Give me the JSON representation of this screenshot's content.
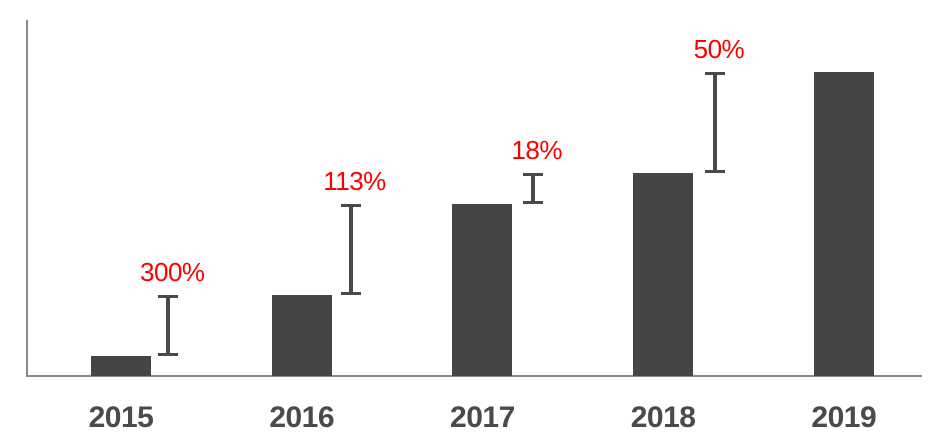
{
  "chart_data": {
    "type": "bar",
    "title": "",
    "xlabel": "",
    "ylabel": "",
    "categories": [
      "2015",
      "2016",
      "2017",
      "2018",
      "2019"
    ],
    "values": [
      6.6,
      26.5,
      56.5,
      66.7,
      100
    ],
    "value_scale": "relative bar height, tallest bar (2019) = 100; chart shows no y-axis tick labels",
    "growth_labels": [
      {
        "from": "2015",
        "to": "2016",
        "label": "300%"
      },
      {
        "from": "2016",
        "to": "2017",
        "label": "113%"
      },
      {
        "from": "2017",
        "to": "2018",
        "label": "18%"
      },
      {
        "from": "2018",
        "to": "2019",
        "label": "50%"
      }
    ],
    "grid": false,
    "legend": "none",
    "axes": "left and bottom lines only, no tick marks",
    "colors": {
      "bar": "#454545",
      "growth_label": "#fb0000",
      "growth_marker": "#4a4a4a",
      "axis_line": "#8a8a8a",
      "tick_label": "#4a4a4a",
      "background": "#ffffff"
    }
  }
}
